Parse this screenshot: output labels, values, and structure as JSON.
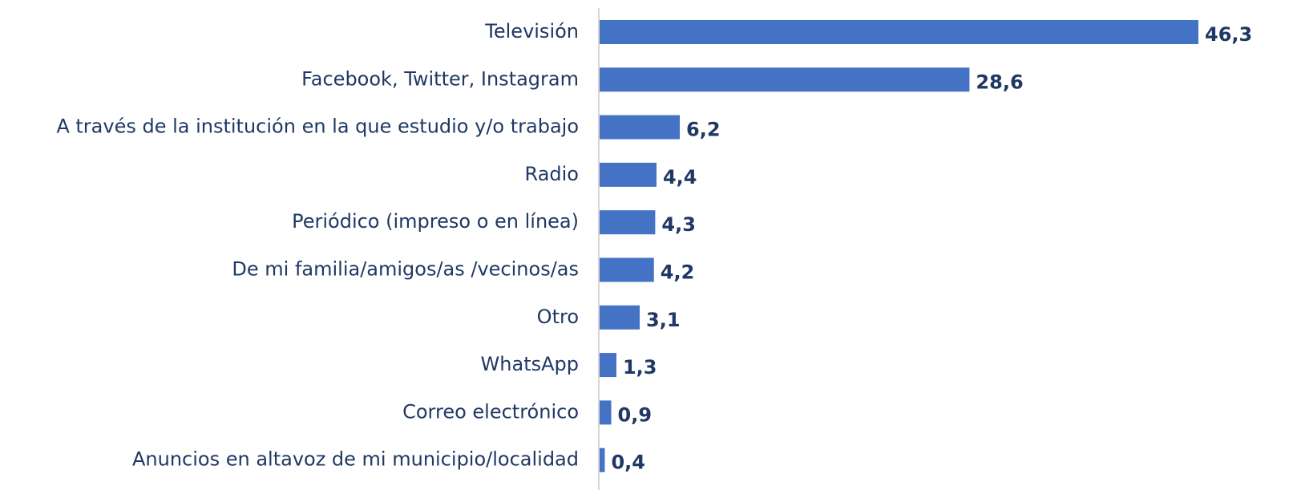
{
  "chart_data": {
    "type": "bar",
    "orientation": "horizontal",
    "categories": [
      "Televisión",
      "Facebook, Twitter, Instagram",
      "A través de la institución en la que estudio y/o trabajo",
      "Radio",
      "Periódico (impreso o en línea)",
      "De mi familia/amigos/as /vecinos/as",
      "Otro",
      "WhatsApp",
      "Correo electrónico",
      "Anuncios en altavoz de mi municipio/localidad"
    ],
    "values": [
      46.3,
      28.6,
      6.2,
      4.4,
      4.3,
      4.2,
      3.1,
      1.3,
      0.9,
      0.4
    ],
    "value_labels": [
      "46,3",
      "28,6",
      "6,2",
      "4,4",
      "4,3",
      "4,2",
      "3,1",
      "1,3",
      "0,9",
      "0,4"
    ],
    "color": "#4472c4"
  }
}
